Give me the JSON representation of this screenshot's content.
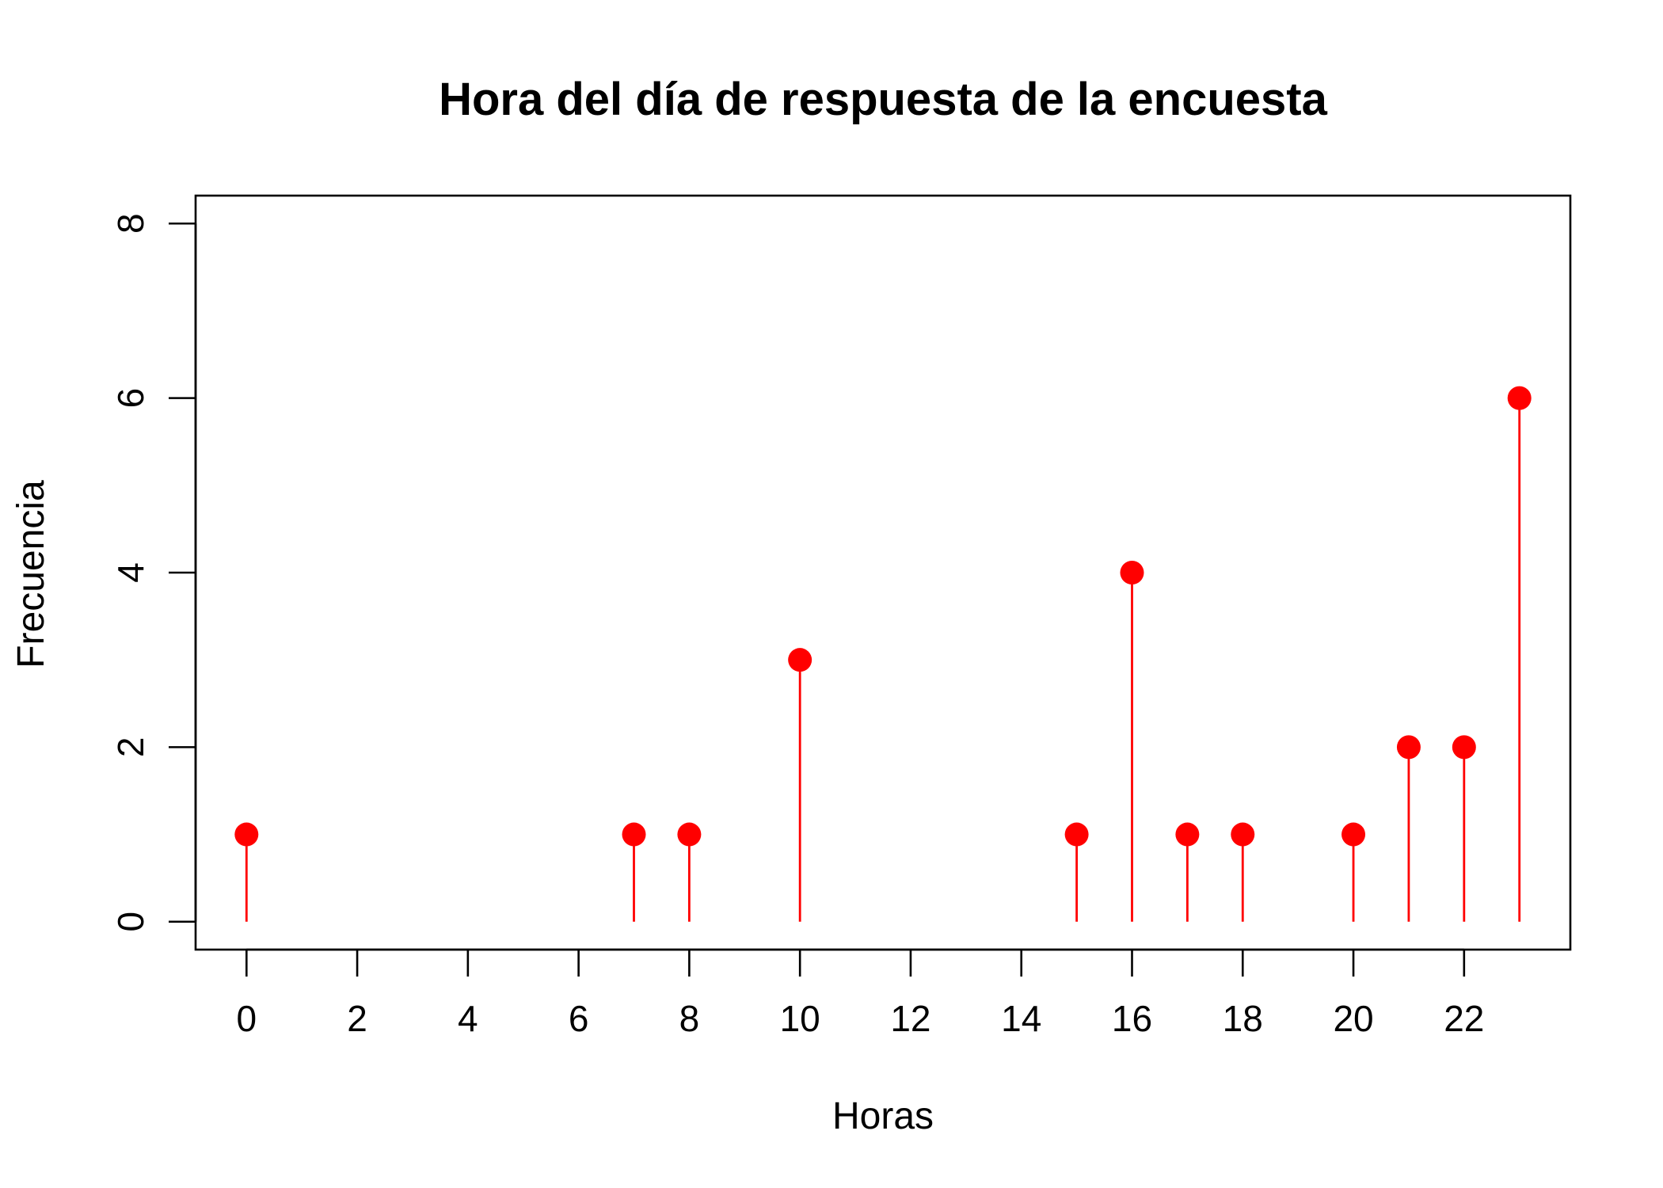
{
  "chart_data": {
    "type": "scatter",
    "style": "lollipop",
    "title": "Hora del día de respuesta de la encuesta",
    "xlabel": "Horas",
    "ylabel": "Frecuencia",
    "xlim": [
      -0.92,
      23.92
    ],
    "ylim": [
      -0.32,
      8.32
    ],
    "xticks": [
      0,
      2,
      4,
      6,
      8,
      10,
      12,
      14,
      16,
      18,
      20,
      22
    ],
    "yticks": [
      0,
      2,
      4,
      6,
      8
    ],
    "x": [
      0,
      7,
      8,
      10,
      15,
      16,
      17,
      18,
      20,
      21,
      22,
      23
    ],
    "y": [
      1,
      1,
      1,
      3,
      1,
      4,
      1,
      1,
      1,
      2,
      2,
      6
    ],
    "color": "#ff0000",
    "grid": false,
    "legend": null
  }
}
